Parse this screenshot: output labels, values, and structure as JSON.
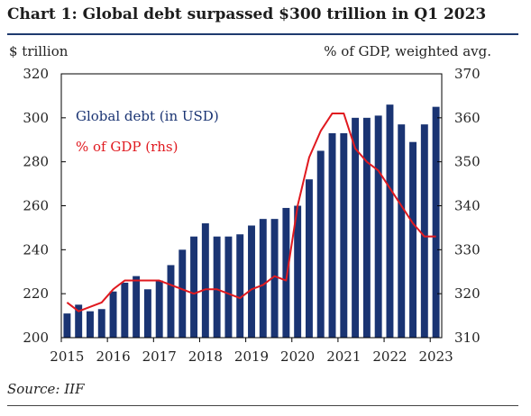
{
  "title": "Chart 1: Global debt surpassed $300 trillion in Q1 2023",
  "left_unit": "$ trillion",
  "right_unit": "% of GDP, weighted avg.",
  "source": "Source: IIF",
  "colors": {
    "bars": "#1a3473",
    "line": "#e0191f",
    "frame": "#000000"
  },
  "chart_data": {
    "type": "bar",
    "title": "Chart 1: Global debt surpassed $300 trillion in Q1 2023",
    "ylabel": "$ trillion",
    "y2label": "% of GDP, weighted avg.",
    "ylim": [
      200,
      320
    ],
    "y2lim": [
      310,
      370
    ],
    "yticks": [
      200,
      220,
      240,
      260,
      280,
      300,
      320
    ],
    "y2ticks": [
      310,
      320,
      330,
      340,
      350,
      360,
      370
    ],
    "xticks": [
      "2015",
      "2016",
      "2017",
      "2018",
      "2019",
      "2020",
      "2021",
      "2022",
      "2023"
    ],
    "grid": false,
    "legend": "top-left",
    "categories": [
      "2015Q1",
      "2015Q2",
      "2015Q3",
      "2015Q4",
      "2016Q1",
      "2016Q2",
      "2016Q3",
      "2016Q4",
      "2017Q1",
      "2017Q2",
      "2017Q3",
      "2017Q4",
      "2018Q1",
      "2018Q2",
      "2018Q3",
      "2018Q4",
      "2019Q1",
      "2019Q2",
      "2019Q3",
      "2019Q4",
      "2020Q1",
      "2020Q2",
      "2020Q3",
      "2020Q4",
      "2021Q1",
      "2021Q2",
      "2021Q3",
      "2021Q4",
      "2022Q1",
      "2022Q2",
      "2022Q3",
      "2022Q4",
      "2023Q1"
    ],
    "series": [
      {
        "name": "Global debt (in USD)",
        "type": "bar",
        "axis": "left",
        "values": [
          211,
          215,
          212,
          213,
          221,
          225,
          228,
          222,
          226,
          233,
          240,
          246,
          252,
          246,
          246,
          247,
          251,
          254,
          254,
          259,
          260,
          272,
          285,
          293,
          293,
          300,
          300,
          301,
          306,
          297,
          289,
          297,
          305
        ]
      },
      {
        "name": "% of GDP (rhs)",
        "type": "line",
        "axis": "right",
        "values": [
          318,
          316,
          317,
          318,
          321,
          323,
          323,
          323,
          323,
          322,
          321,
          320,
          321,
          321,
          320,
          319,
          321,
          322,
          324,
          323,
          340,
          351,
          357,
          361,
          361,
          353,
          350,
          348,
          344,
          340,
          336,
          333,
          333
        ]
      }
    ]
  }
}
